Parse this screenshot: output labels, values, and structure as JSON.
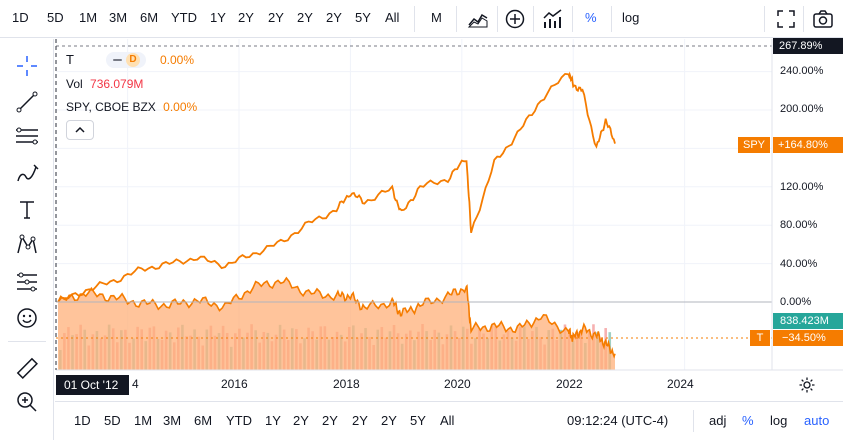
{
  "toolbar": {
    "intervals": [
      "1D",
      "5D",
      "1M",
      "3M",
      "6M",
      "YTD",
      "1Y",
      "2Y",
      "2Y",
      "2Y",
      "2Y",
      "5Y",
      "All"
    ],
    "bar_style": "M",
    "active_mode": "%",
    "log_label": "log",
    "icons": [
      "area-chart-icon",
      "add-compare-icon",
      "indicators-icon",
      "fullscreen-icon",
      "screenshot-icon"
    ]
  },
  "left_tools": [
    "crosshair-icon",
    "trend-line-icon",
    "fib-levels-icon",
    "brush-icon",
    "text-icon",
    "pattern-icon",
    "forecast-icon",
    "emoji-icon",
    "ruler-icon",
    "zoom-in-icon"
  ],
  "legend": {
    "symbol": "T",
    "interval_badge": "D",
    "change": "0.00%",
    "vol_label": "Vol",
    "vol_value": "736.079M",
    "compare_label": "SPY, CBOE BZX",
    "compare_change": "0.00%"
  },
  "price_scale": {
    "labels": [
      "240.00%",
      "200.00%",
      "120.00%",
      "80.00%",
      "40.00%",
      "0.00%"
    ],
    "top_label": "267.89%",
    "spy_tag_symbol": "SPY",
    "spy_tag_value": "+164.80%",
    "vol_tag": "838.423M",
    "t_tag_symbol": "T",
    "t_tag_value": "−34.50%"
  },
  "time_axis": {
    "crosshair_date": "01 Oct '12",
    "labels": [
      "4",
      "2016",
      "2018",
      "2020",
      "2022",
      "2024"
    ]
  },
  "bottom_toolbar": {
    "ranges": [
      "1D",
      "5D",
      "1M",
      "3M",
      "6M",
      "YTD",
      "1Y",
      "2Y",
      "2Y",
      "2Y",
      "2Y",
      "5Y",
      "All"
    ],
    "clock": "09:12:24 (UTC-4)",
    "adj": "adj",
    "percent": "%",
    "log": "log",
    "auto": "auto"
  },
  "colors": {
    "spy_line": "#f57c00",
    "t_area": "#ffb07a",
    "t_line": "#f57c00",
    "vol_up": "#8fc7b8",
    "vol_down": "#f4a3a3",
    "vol_tag": "#26a69a",
    "accent": "#2962ff"
  },
  "chart_data": {
    "type": "line",
    "x_range": [
      "2012-10",
      "2022-10"
    ],
    "y_unit": "%",
    "log_scale": false,
    "series": [
      {
        "name": "SPY",
        "x": [
          "2012-10",
          "2013-04",
          "2013-10",
          "2014-04",
          "2014-10",
          "2015-04",
          "2015-10",
          "2016-04",
          "2016-10",
          "2017-04",
          "2017-10",
          "2018-01",
          "2018-04",
          "2018-10",
          "2018-12",
          "2019-04",
          "2019-10",
          "2020-02",
          "2020-03",
          "2020-08",
          "2021-01",
          "2021-06",
          "2021-12",
          "2022-01",
          "2022-03",
          "2022-06",
          "2022-08",
          "2022-10"
        ],
        "values": [
          0,
          12,
          22,
          34,
          40,
          46,
          38,
          50,
          62,
          82,
          96,
          114,
          104,
          118,
          92,
          120,
          128,
          150,
          72,
          145,
          175,
          210,
          240,
          226,
          220,
          160,
          190,
          165
        ]
      },
      {
        "name": "T",
        "x": [
          "2012-10",
          "2013-04",
          "2013-10",
          "2014-04",
          "2014-10",
          "2015-04",
          "2015-10",
          "2016-04",
          "2016-10",
          "2017-04",
          "2017-10",
          "2018-01",
          "2018-04",
          "2018-10",
          "2018-12",
          "2019-04",
          "2019-10",
          "2020-02",
          "2020-03",
          "2020-08",
          "2021-01",
          "2021-06",
          "2021-12",
          "2022-01",
          "2022-03",
          "2022-06",
          "2022-08",
          "2022-10"
        ],
        "values": [
          0,
          6,
          3,
          -1,
          -2,
          1,
          -3,
          10,
          14,
          6,
          4,
          4,
          -4,
          0,
          -8,
          -2,
          4,
          10,
          -18,
          -16,
          -18,
          -10,
          -20,
          -24,
          -18,
          -22,
          -28,
          -34.5
        ]
      }
    ]
  }
}
